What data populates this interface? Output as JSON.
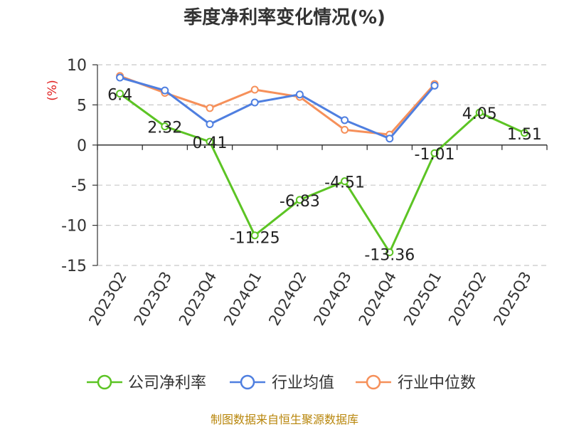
{
  "chart_data": {
    "type": "line",
    "title": "季度净利率变化情况(%)",
    "ylabel": "(%)",
    "xlabel": "",
    "categories": [
      "2023Q2",
      "2023Q3",
      "2023Q4",
      "2024Q1",
      "2024Q2",
      "2024Q3",
      "2024Q4",
      "2025Q1",
      "2025Q2",
      "2025Q3"
    ],
    "ylim": [
      -15,
      10
    ],
    "yticks": [
      10,
      5,
      0,
      -5,
      -10,
      -15
    ],
    "grid": true,
    "legend_position": "bottom",
    "series": [
      {
        "name": "公司净利率",
        "color": "#5cc424",
        "values": [
          6.4,
          2.32,
          0.41,
          -11.25,
          -6.83,
          -4.51,
          -13.36,
          -1.01,
          4.05,
          1.51
        ],
        "labels": [
          "6.4",
          "2.32",
          "0.41",
          "-11.25",
          "-6.83",
          "-4.51",
          "-13.36",
          "-1.01",
          "4.05",
          "1.51"
        ]
      },
      {
        "name": "行业均值",
        "color": "#4f7fe0",
        "values": [
          8.4,
          6.8,
          2.6,
          5.3,
          6.3,
          3.1,
          0.8,
          7.4,
          null,
          null
        ]
      },
      {
        "name": "行业中位数",
        "color": "#f6905a",
        "values": [
          8.6,
          6.5,
          4.6,
          6.9,
          6.0,
          1.9,
          1.3,
          7.6,
          null,
          null
        ]
      }
    ]
  },
  "source": "制图数据来自恒生聚源数据库"
}
